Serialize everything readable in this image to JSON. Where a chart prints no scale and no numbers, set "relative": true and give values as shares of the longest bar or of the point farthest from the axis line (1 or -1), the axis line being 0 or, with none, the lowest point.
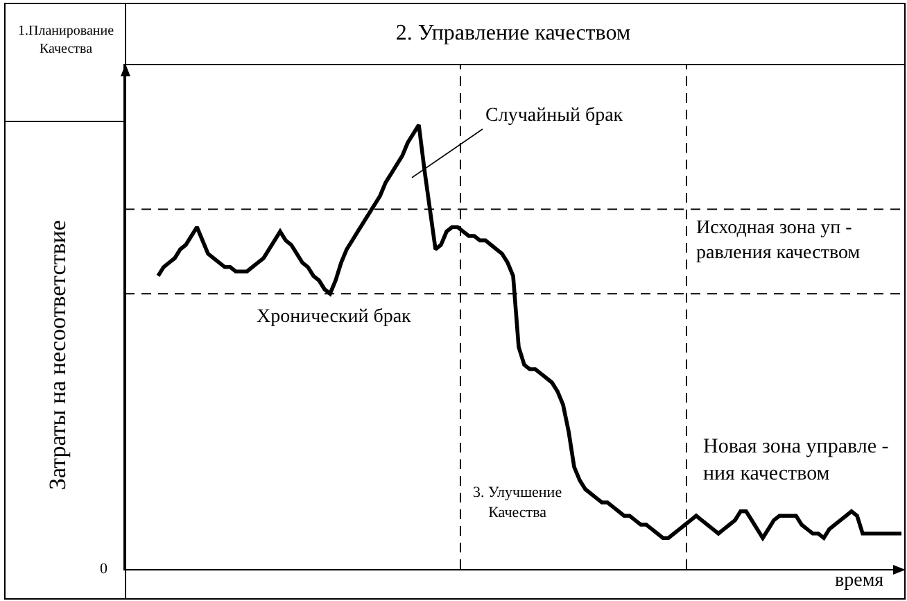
{
  "chart_data": {
    "type": "line",
    "title": "2. Управление качеством",
    "xlabel": "время",
    "ylabel": "Затраты на несоответствие",
    "relative": true,
    "color": "#000000",
    "categories": [
      null,
      null,
      null,
      null,
      null,
      null,
      null,
      null,
      null,
      null,
      null,
      null,
      null,
      null,
      null,
      null,
      null,
      null,
      null,
      null,
      null,
      null,
      null,
      null,
      null,
      null,
      null,
      null,
      null,
      null,
      null,
      null,
      null,
      null,
      null,
      null,
      null,
      null,
      null,
      null,
      null,
      null,
      null,
      null,
      null,
      null,
      null,
      null,
      null,
      null,
      null,
      null,
      null,
      null,
      null,
      null,
      null,
      null,
      null,
      null,
      null,
      null,
      null,
      null,
      null,
      null,
      null,
      null,
      null,
      null,
      null,
      null,
      null,
      null,
      null,
      null,
      null,
      null,
      null,
      null,
      null,
      null,
      null,
      null,
      null,
      null,
      null,
      null,
      null,
      null,
      null,
      null,
      null,
      null,
      null,
      null,
      null,
      null,
      null,
      null,
      null,
      null,
      null,
      null,
      null,
      null,
      null,
      null,
      null,
      null,
      null,
      null,
      null,
      null,
      null,
      null,
      null,
      null,
      null,
      null,
      null,
      null,
      null,
      null,
      null,
      null,
      null,
      null,
      null,
      null,
      null,
      null,
      null,
      null,
      null,
      null,
      null,
      null,
      null,
      null,
      null
    ],
    "values": [
      null,
      null,
      null,
      null,
      null,
      null,
      0.66,
      0.68,
      0.69,
      0.7,
      0.72,
      0.73,
      0.75,
      0.77,
      0.74,
      0.71,
      0.7,
      0.69,
      0.68,
      0.68,
      0.67,
      0.67,
      0.67,
      0.68,
      0.69,
      0.7,
      0.72,
      0.74,
      0.76,
      0.74,
      0.73,
      0.71,
      0.69,
      0.68,
      0.66,
      0.65,
      0.63,
      0.62,
      0.65,
      0.69,
      0.72,
      0.74,
      0.76,
      0.78,
      0.8,
      0.82,
      0.84,
      0.87,
      0.89,
      0.91,
      0.93,
      0.96,
      0.98,
      1,
      0.9,
      0.81,
      0.72,
      0.73,
      0.76,
      0.77,
      0.77,
      0.76,
      0.75,
      0.75,
      0.74,
      0.74,
      0.73,
      0.72,
      0.71,
      0.69,
      0.66,
      0.5,
      0.46,
      0.45,
      0.45,
      0.44,
      0.43,
      0.42,
      0.4,
      0.37,
      0.31,
      0.23,
      0.2,
      0.18,
      0.17,
      0.16,
      0.15,
      0.15,
      0.14,
      0.13,
      0.12,
      0.12,
      0.11,
      0.1,
      0.1,
      0.09,
      0.08,
      0.07,
      0.07,
      0.08,
      0.09,
      0.1,
      0.11,
      0.12,
      0.11,
      0.1,
      0.09,
      0.08,
      0.09,
      0.1,
      0.11,
      0.13,
      0.13,
      0.11,
      0.09,
      0.07,
      0.09,
      0.11,
      0.12,
      0.12,
      0.12,
      0.12,
      0.1,
      0.09,
      0.08,
      0.08,
      0.07,
      0.09,
      0.1,
      0.11,
      0.12,
      0.13,
      0.12,
      0.08,
      0.08,
      0.08,
      0.08,
      0.08,
      0.08,
      0.08,
      0.08
    ],
    "ref_lines": [
      {
        "axis": "y",
        "value": 0.81,
        "color": "#000000",
        "line_style": "dashed"
      },
      {
        "axis": "y",
        "value": 0.62,
        "color": "#000000",
        "line_style": "dashed"
      }
    ],
    "annotations": [
      "Случайный брак",
      "Хронический брак",
      "Исходная зона уп -\nравления качеством",
      "3. Улучшение\nКачества",
      "Новая зона управле -\nния качеством",
      "1.Планирование\nКачества",
      "0"
    ]
  }
}
